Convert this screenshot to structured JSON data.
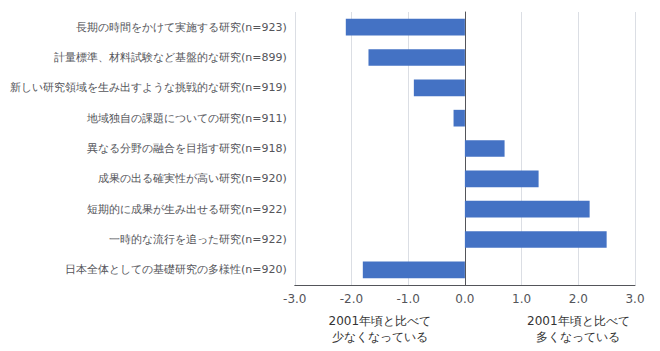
{
  "chart_data": {
    "type": "bar",
    "orientation": "horizontal",
    "categories": [
      "長期の時間をかけて実施する研究(n=923)",
      "計量標準、材料試験など基盤的な研究(n=899)",
      "新しい研究領域を生み出すような挑戦的な研究(n=919)",
      "地域独自の課題についての研究(n=911)",
      "異なる分野の融合を目指す研究(n=918)",
      "成果の出る確実性が高い研究(n=920)",
      "短期的に成果が生み出せる研究(n=922)",
      "一時的な流行を追った研究(n=922)",
      "日本全体としての基礎研究の多様性(n=920)"
    ],
    "values": [
      -2.1,
      -1.7,
      -0.9,
      -0.2,
      0.7,
      1.3,
      2.2,
      2.5,
      -1.8
    ],
    "color": "#4472C4",
    "xlim": [
      -3.0,
      3.0
    ],
    "xticks": [
      {
        "value": -3.0,
        "label": "-3.0"
      },
      {
        "value": -2.0,
        "label": "-2.0"
      },
      {
        "value": -1.0,
        "label": "-1.0"
      },
      {
        "value": 0.0,
        "label": "0.0"
      },
      {
        "value": 1.0,
        "label": "1.0"
      },
      {
        "value": 2.0,
        "label": "2.0"
      },
      {
        "value": 3.0,
        "label": "3.0"
      }
    ],
    "grid": true,
    "annotations": [
      {
        "text": "2001年頃と比べて\n少なくなっている",
        "x": -1.5
      },
      {
        "text": "2001年頃と比べて\n多くなっている",
        "x": 2.0
      }
    ]
  }
}
